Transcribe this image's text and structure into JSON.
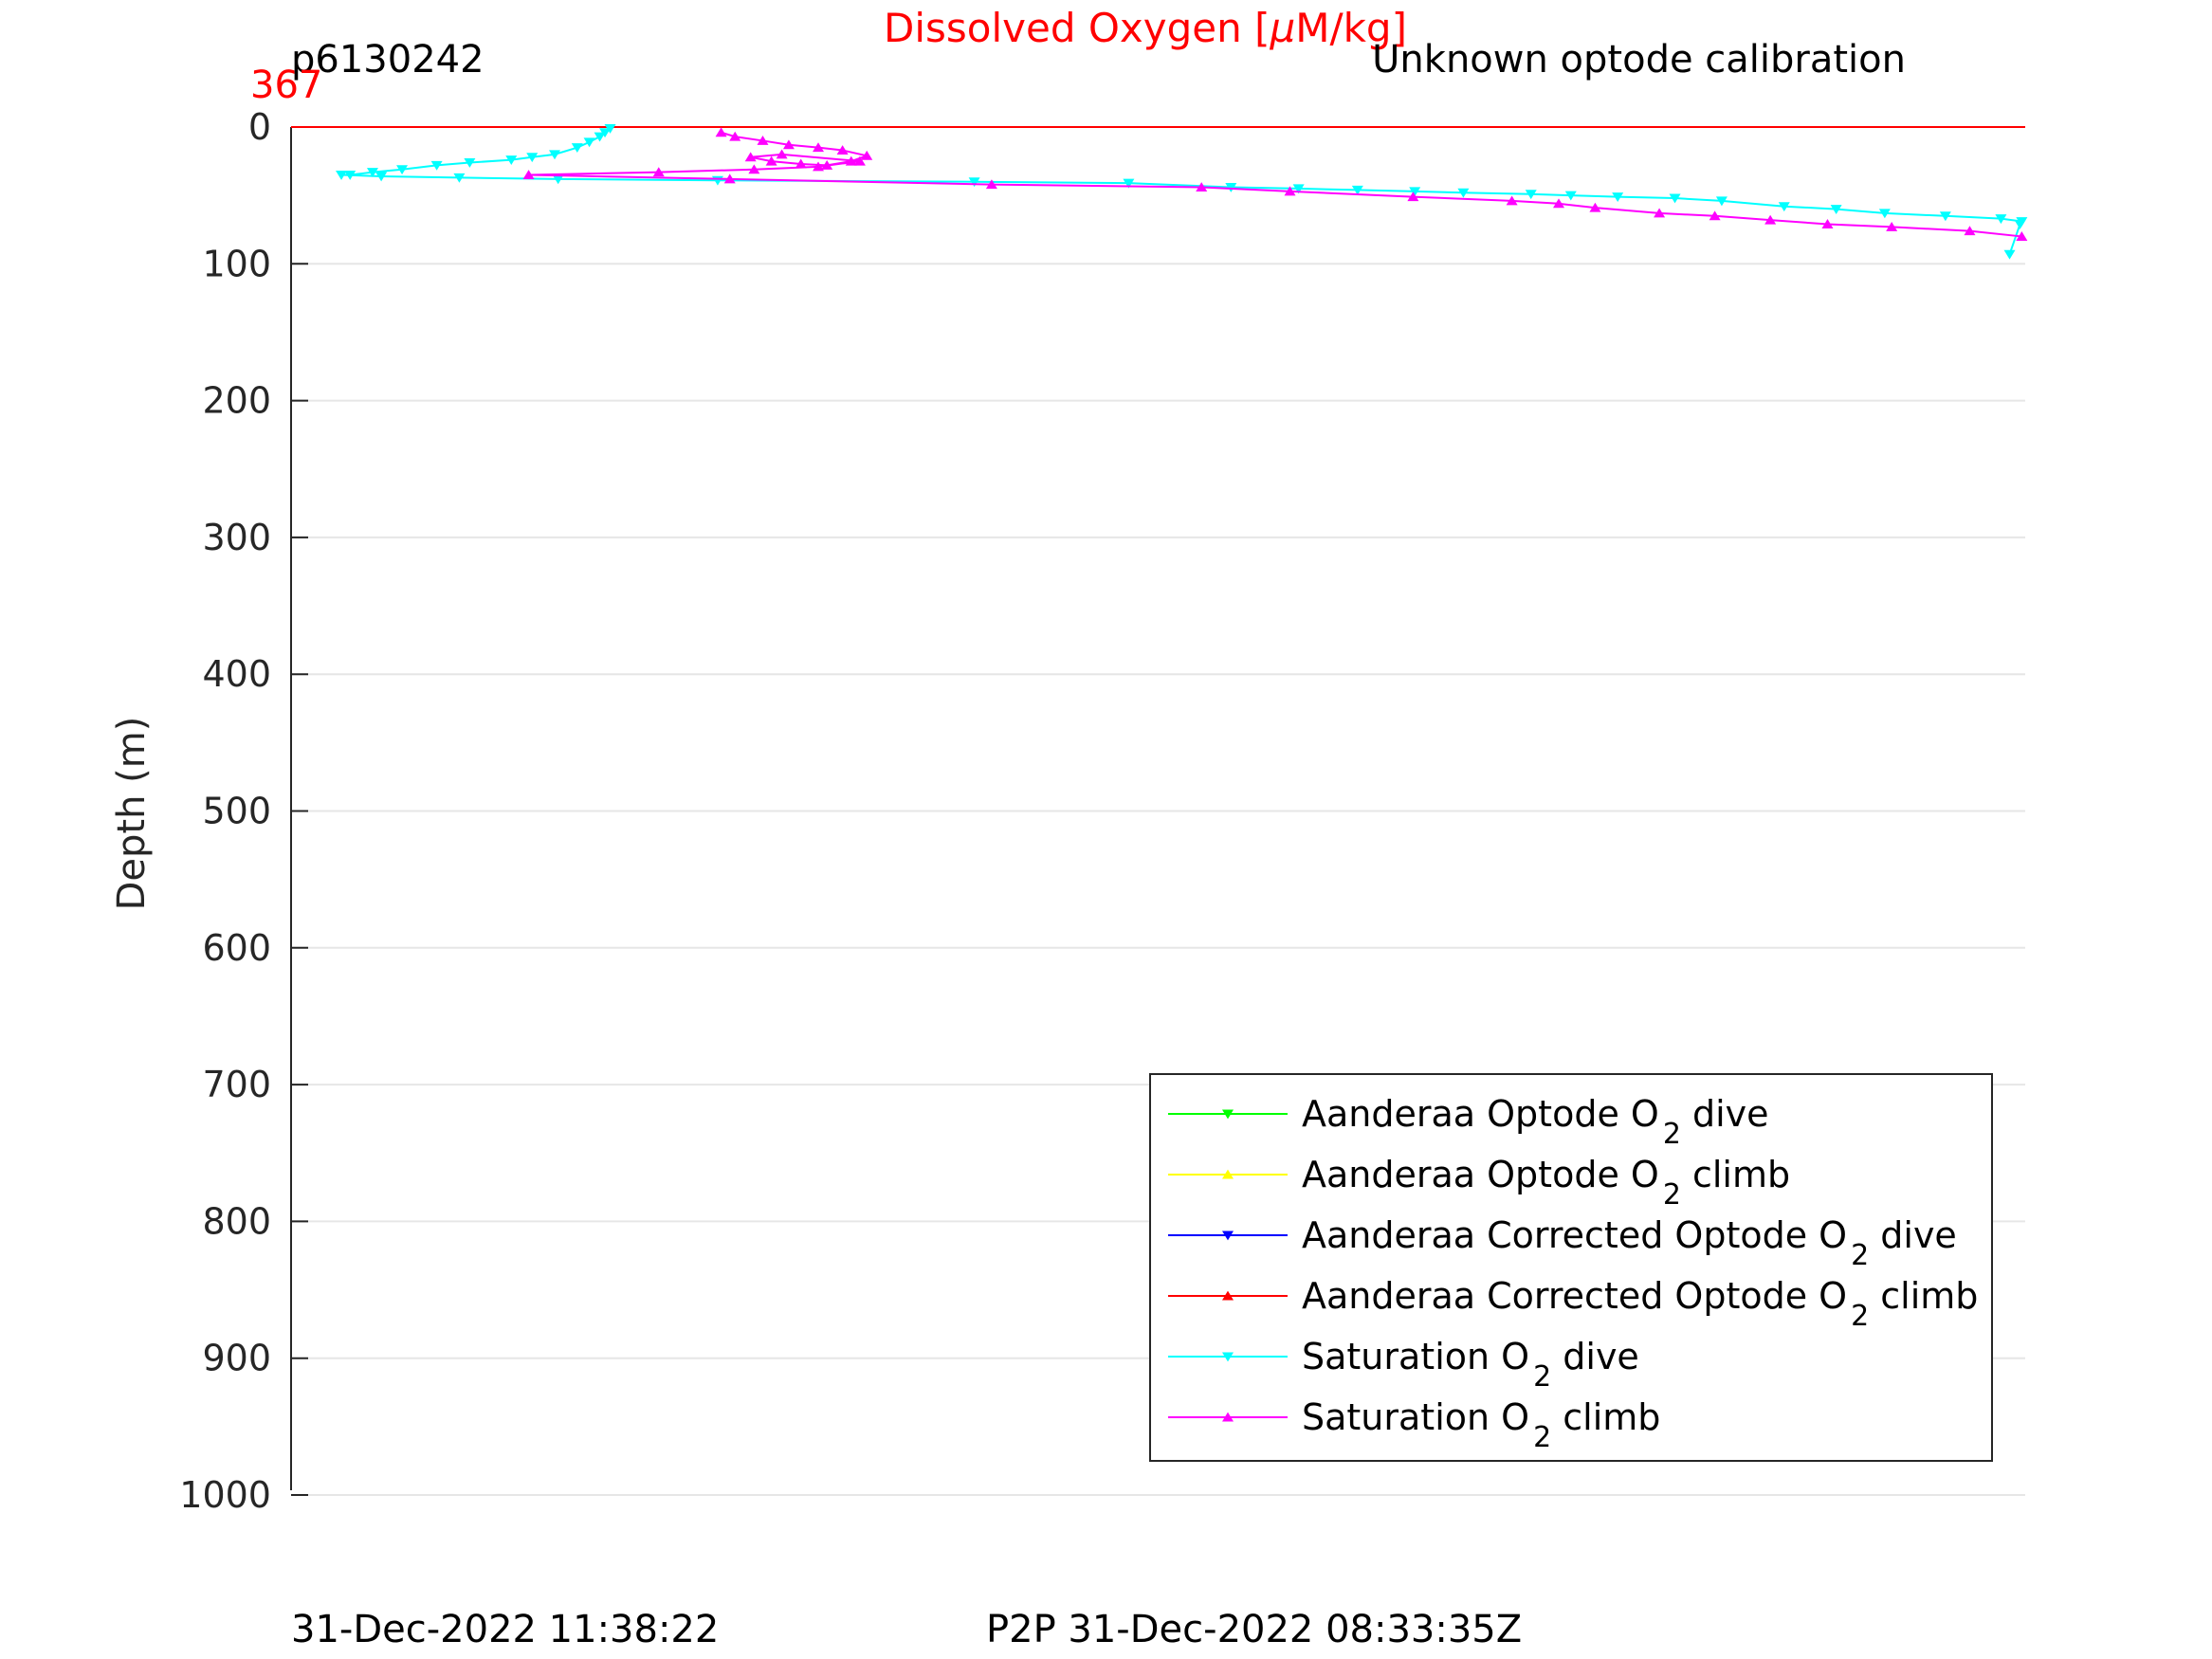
{
  "header": {
    "title": "Dissolved Oxygen [",
    "title_mu": "μ",
    "title_tail": "M/kg]",
    "glider_id": "p6130242",
    "calibration_note": "Unknown optode calibration",
    "top_value": "367"
  },
  "footer": {
    "plot_time": "31-Dec-2022 11:38:22",
    "p2p_time": "P2P 31-Dec-2022 08:33:35Z"
  },
  "legend": {
    "items": [
      {
        "pre": "Aanderaa Optode O",
        "sub": "2",
        "post": " dive",
        "color": "#00ff00",
        "marker": "down"
      },
      {
        "pre": "Aanderaa Optode O",
        "sub": "2",
        "post": " climb",
        "color": "#ffff00",
        "marker": "up"
      },
      {
        "pre": "Aanderaa Corrected Optode O",
        "sub": "2",
        "post": " dive",
        "color": "#0000ff",
        "marker": "down"
      },
      {
        "pre": "Aanderaa Corrected Optode O",
        "sub": "2",
        "post": " climb",
        "color": "#ff0000",
        "marker": "up"
      },
      {
        "pre": "Saturation O",
        "sub": "2",
        "post": " dive",
        "color": "#00ffff",
        "marker": "down"
      },
      {
        "pre": "Saturation O",
        "sub": "2",
        "post": " climb",
        "color": "#ff00ff",
        "marker": "up"
      }
    ]
  },
  "chart_data": {
    "type": "line",
    "ylabel": "Depth (m)",
    "ylim": [
      0,
      1000
    ],
    "y_reversed": true,
    "xlim": [
      0,
      100
    ],
    "yticks": [
      0,
      100,
      200,
      300,
      400,
      500,
      600,
      700,
      800,
      900,
      1000
    ],
    "grid": true,
    "legend_position": "bottom-right",
    "series": [
      {
        "name": "Aanderaa Corrected Optode O2 climb",
        "color": "#ff0000",
        "marker": "up",
        "x": [
          0,
          100
        ],
        "y": [
          0,
          0
        ]
      },
      {
        "name": "Saturation O2 dive",
        "color": "#00ffff",
        "marker": "down",
        "x": [
          18.4,
          18.1,
          17.8,
          17.2,
          16.5,
          15.2,
          13.9,
          12.7,
          10.3,
          8.4,
          6.4,
          4.7,
          3.4,
          2.9,
          5.2,
          9.7,
          15.4,
          24.6,
          39.4,
          48.3,
          54.2,
          58.1,
          61.5,
          64.8,
          67.6,
          71.5,
          73.8,
          76.5,
          79.8,
          82.5,
          86.1,
          89.1,
          91.9,
          95.4,
          98.6,
          99.8,
          99.7,
          99.1
        ],
        "y": [
          1,
          4,
          7,
          11,
          15,
          20,
          22,
          24,
          26,
          28,
          31,
          33,
          35,
          35,
          36,
          37,
          38,
          39,
          40,
          41,
          44,
          45,
          46,
          47,
          48,
          49,
          50,
          51,
          52,
          54,
          58,
          60,
          63,
          65,
          67,
          69,
          71,
          93
        ]
      },
      {
        "name": "Saturation O2 climb",
        "color": "#ff00ff",
        "marker": "up",
        "x": [
          24.8,
          25.6,
          27.2,
          28.7,
          30.4,
          31.8,
          33.2,
          32.3,
          30.9,
          29.4,
          27.7,
          26.5,
          28.3,
          32.8,
          30.4,
          26.7,
          21.2,
          13.7,
          25.3,
          40.4,
          52.5,
          57.6,
          64.7,
          70.4,
          73.1,
          75.2,
          78.9,
          82.1,
          85.3,
          88.6,
          92.3,
          96.8,
          99.8
        ],
        "y": [
          4,
          7,
          10,
          13,
          15,
          17,
          21,
          25,
          28,
          27,
          25,
          22,
          20,
          25,
          29,
          31,
          33,
          35,
          38,
          42,
          44,
          47,
          51,
          54,
          56,
          59,
          63,
          65,
          68,
          71,
          73,
          76,
          80
        ]
      }
    ]
  }
}
